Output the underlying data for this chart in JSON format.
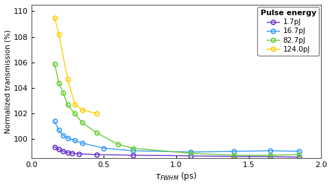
{
  "xlabel": "$\\tau_{FWHM}$ (ps)",
  "ylabel": "Normalized transmission (%)",
  "xlim": [
    0,
    2
  ],
  "ylim": [
    98.5,
    110.5
  ],
  "yticks": [
    100,
    102,
    104,
    106,
    108,
    110
  ],
  "xticks": [
    0,
    0.5,
    1,
    1.5,
    2
  ],
  "series": [
    {
      "label": "1.7pJ",
      "color": "#6633CC",
      "x": [
        0.16,
        0.19,
        0.22,
        0.25,
        0.28,
        0.33,
        0.45,
        0.7,
        1.1,
        1.4,
        1.65,
        1.85
      ],
      "y": [
        99.4,
        99.2,
        99.05,
        98.95,
        98.9,
        98.85,
        98.8,
        98.75,
        98.7,
        98.65,
        98.65,
        98.6
      ]
    },
    {
      "label": "16.7pJ",
      "color": "#3399FF",
      "x": [
        0.16,
        0.19,
        0.22,
        0.25,
        0.3,
        0.35,
        0.5,
        0.7,
        1.1,
        1.4,
        1.65,
        1.85
      ],
      "y": [
        101.4,
        100.7,
        100.3,
        100.1,
        99.9,
        99.7,
        99.3,
        99.1,
        99.0,
        99.05,
        99.1,
        99.05
      ]
    },
    {
      "label": "82.7pJ",
      "color": "#66CC33",
      "x": [
        0.16,
        0.19,
        0.22,
        0.25,
        0.3,
        0.35,
        0.45,
        0.6,
        0.7,
        1.1,
        1.4,
        1.65,
        1.85
      ],
      "y": [
        105.9,
        104.4,
        103.6,
        102.7,
        102.0,
        101.3,
        100.5,
        99.6,
        99.3,
        98.9,
        98.75,
        98.75,
        98.8
      ]
    },
    {
      "label": "124.0pJ",
      "color": "#FFCC00",
      "x": [
        0.16,
        0.19,
        0.25,
        0.3,
        0.35,
        0.45
      ],
      "y": [
        109.5,
        108.2,
        104.7,
        102.7,
        102.3,
        102.0
      ]
    }
  ],
  "legend_title": "Pulse energy",
  "background_color": "#ffffff",
  "plot_bg_color": "#ffffff"
}
